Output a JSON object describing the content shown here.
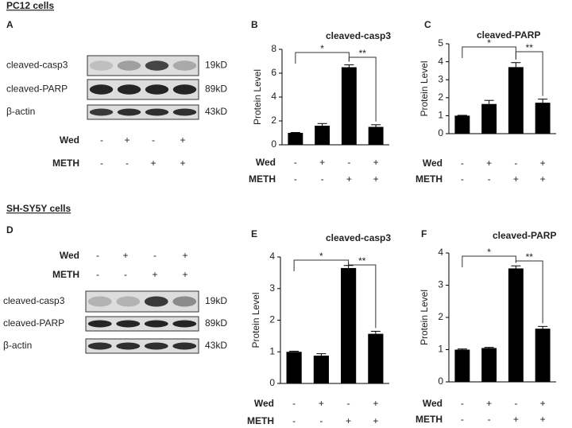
{
  "section_labels": [
    "PC12 cells",
    "SH-SY5Y  cells"
  ],
  "blots": [
    {
      "panel": "A",
      "bands": [
        {
          "name": "cleaved-casp3",
          "size": "19kD"
        },
        {
          "name": "cleaved-PARP",
          "size": "89kD"
        },
        {
          "name": "β-actin",
          "size": "43kD"
        }
      ],
      "conditions": [
        {
          "name": "Wed",
          "signs": [
            "-",
            "+",
            "-",
            "+"
          ]
        },
        {
          "name": "METH",
          "signs": [
            "-",
            "-",
            "+",
            "+"
          ]
        }
      ]
    },
    {
      "panel": "D",
      "bands": [
        {
          "name": "cleaved-casp3",
          "size": "19kD"
        },
        {
          "name": "cleaved-PARP",
          "size": "89kD"
        },
        {
          "name": "β-actin",
          "size": "43kD"
        }
      ],
      "conditions": [
        {
          "name": "Wed",
          "signs": [
            "-",
            "+",
            "-",
            "+"
          ]
        },
        {
          "name": "METH",
          "signs": [
            "-",
            "-",
            "+",
            "+"
          ]
        }
      ]
    }
  ],
  "chart_data": [
    {
      "type": "bar",
      "panel": "B",
      "title": "cleaved-casp3",
      "y_label": "Protein Level",
      "values": [
        1,
        1.6,
        6.5,
        1.5
      ],
      "errors": [
        0.03,
        0.18,
        0.2,
        0.18
      ],
      "color": "#000000",
      "ylim": [
        0,
        8
      ],
      "yticks": [
        0,
        2,
        4,
        6,
        8
      ],
      "significance": [
        "*",
        "**"
      ],
      "conditions": [
        {
          "name": "Wed",
          "signs": [
            "-",
            "+",
            "-",
            "+"
          ]
        },
        {
          "name": "METH",
          "signs": [
            "-",
            "-",
            "+",
            "+"
          ]
        }
      ]
    },
    {
      "type": "bar",
      "panel": "C",
      "title": "cleaved-PARP",
      "y_label": "Protein Level",
      "values": [
        1,
        1.65,
        3.7,
        1.72
      ],
      "errors": [
        0.02,
        0.2,
        0.25,
        0.2
      ],
      "color": "#000000",
      "ylim": [
        0,
        5
      ],
      "yticks": [
        0,
        1,
        2,
        3,
        4,
        5
      ],
      "significance": [
        "*",
        "**"
      ],
      "conditions": [
        {
          "name": "Wed",
          "signs": [
            "-",
            "+",
            "-",
            "+"
          ]
        },
        {
          "name": "METH",
          "signs": [
            "-",
            "-",
            "+",
            "+"
          ]
        }
      ]
    },
    {
      "type": "bar",
      "panel": "E",
      "title": "cleaved-casp3",
      "y_label": "Protein Level",
      "values": [
        1,
        0.88,
        3.65,
        1.57
      ],
      "errors": [
        0.02,
        0.06,
        0.08,
        0.08
      ],
      "color": "#000000",
      "ylim": [
        0,
        4
      ],
      "yticks": [
        0,
        1,
        2,
        3,
        4
      ],
      "significance": [
        "*",
        "**"
      ],
      "conditions": [
        {
          "name": "Wed",
          "signs": [
            "-",
            "+",
            "-",
            "+"
          ]
        },
        {
          "name": "METH",
          "signs": [
            "-",
            "-",
            "+",
            "+"
          ]
        }
      ]
    },
    {
      "type": "bar",
      "panel": "F",
      "title": "cleaved-PARP",
      "y_label": "Protein Level",
      "values": [
        1,
        1.05,
        3.52,
        1.65
      ],
      "errors": [
        0.02,
        0.02,
        0.08,
        0.07
      ],
      "color": "#000000",
      "ylim": [
        0,
        4
      ],
      "yticks": [
        0,
        1,
        2,
        3,
        4
      ],
      "significance": [
        "*",
        "**"
      ],
      "conditions": [
        {
          "name": "Wed",
          "signs": [
            "-",
            "+",
            "-",
            "+"
          ]
        },
        {
          "name": "METH",
          "signs": [
            "-",
            "-",
            "+",
            "+"
          ]
        }
      ]
    }
  ]
}
